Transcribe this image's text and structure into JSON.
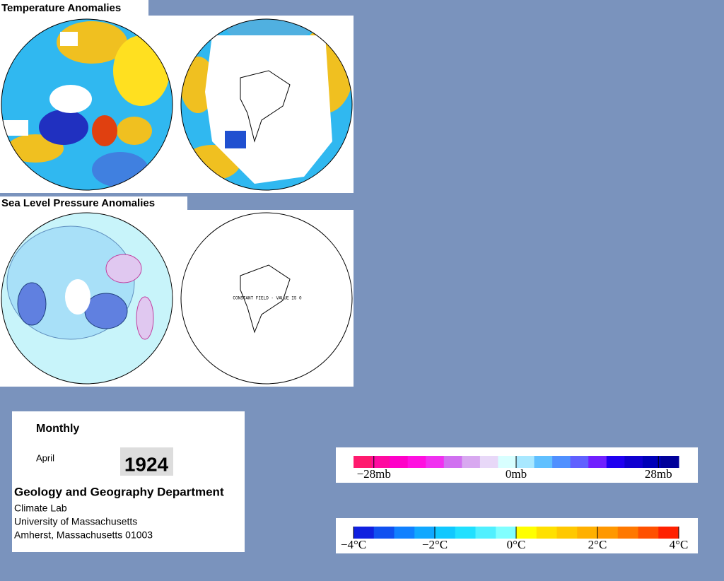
{
  "temperature_panel": {
    "title": "Temperature Anomalies"
  },
  "pressure_panel": {
    "title": "Sea Level Pressure Anomalies",
    "note": "CONSTANT FIELD - VALUE IS 0"
  },
  "info": {
    "frequency": "Monthly",
    "month": "April",
    "year": "1924",
    "department": "Geology and Geography Department",
    "lab": "Climate Lab",
    "university": "University of Massachusetts",
    "address": "Amherst, Massachusetts 01003"
  },
  "pressure_legend": {
    "lim": [
      -32,
      32
    ],
    "ticks": [
      {
        "value": -28,
        "label": "−28mb"
      },
      {
        "value": 0,
        "label": "0mb"
      },
      {
        "value": 28,
        "label": "28mb"
      }
    ],
    "colors": [
      "#ff1a6e",
      "#ff0aa0",
      "#ff00c8",
      "#ff10e0",
      "#f030f0",
      "#d070f0",
      "#d8a8f0",
      "#e8d8f8",
      "#d8ffff",
      "#a8e8ff",
      "#60c0ff",
      "#5090ff",
      "#6060ff",
      "#7020ff",
      "#2000f0",
      "#1000d0",
      "#0000b8",
      "#00009a"
    ]
  },
  "temperature_legend": {
    "lim": [
      -4,
      4
    ],
    "ticks": [
      {
        "value": -4,
        "label": "−4°C"
      },
      {
        "value": -2,
        "label": "−2°C"
      },
      {
        "value": 0,
        "label": "0°C"
      },
      {
        "value": 2,
        "label": "2°C"
      },
      {
        "value": 4,
        "label": "4°C"
      }
    ],
    "colors": [
      "#1020e0",
      "#1050f0",
      "#1080ff",
      "#10a8ff",
      "#10c8ff",
      "#20e0ff",
      "#50f0ff",
      "#80ffff",
      "#ffff00",
      "#ffe000",
      "#ffc800",
      "#ffb000",
      "#ff9800",
      "#ff7800",
      "#ff5000",
      "#ff2000"
    ]
  }
}
